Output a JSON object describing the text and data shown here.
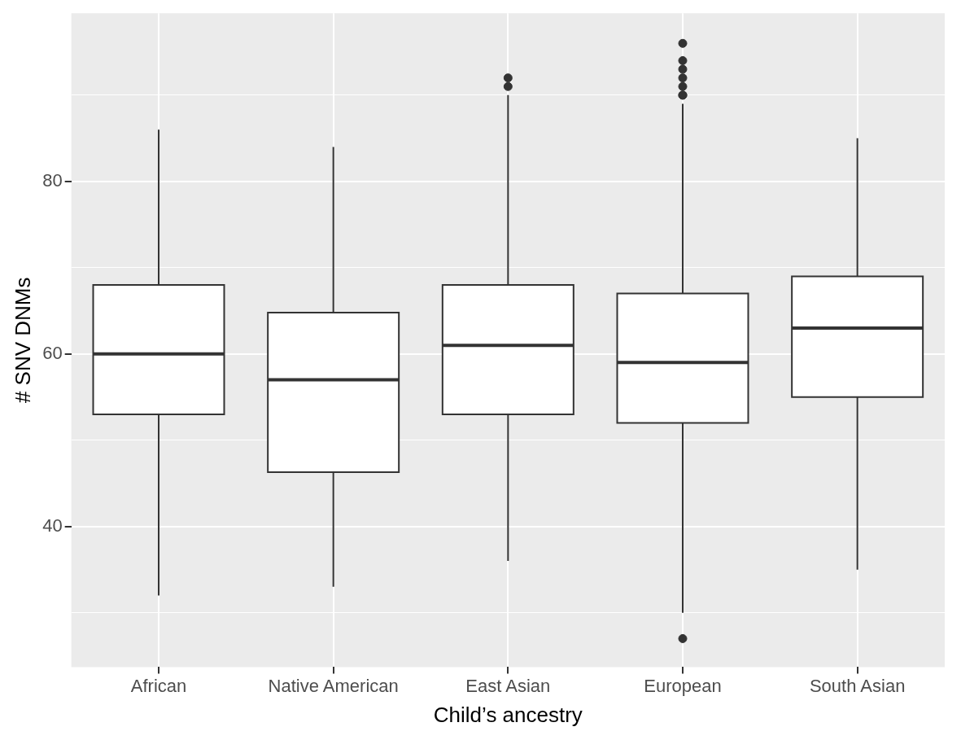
{
  "chart_data": {
    "type": "box",
    "xlabel": "Child’s ancestry",
    "ylabel": "# SNV DNMs",
    "categories": [
      "African",
      "Native American",
      "East Asian",
      "European",
      "South Asian"
    ],
    "boxes": [
      {
        "low": 32,
        "q1": 53,
        "median": 60,
        "q3": 68,
        "high": 86
      },
      {
        "low": 33,
        "q1": 46.3,
        "median": 57,
        "q3": 64.8,
        "high": 84
      },
      {
        "low": 36,
        "q1": 53,
        "median": 61,
        "q3": 68,
        "high": 90,
        "outliers": [
          91,
          92
        ]
      },
      {
        "low": 30,
        "q1": 52,
        "median": 59,
        "q3": 67,
        "high": 89,
        "outliers": [
          27,
          90,
          90,
          91,
          92,
          93,
          94,
          96
        ]
      },
      {
        "low": 35,
        "q1": 55,
        "median": 63,
        "q3": 69,
        "high": 85
      }
    ],
    "color": "#ffffff",
    "ylim": [
      23.7,
      99.5
    ],
    "yticks": [
      {
        "value": 30,
        "label": null
      },
      40,
      {
        "value": 50,
        "label": null
      },
      60,
      {
        "value": 70,
        "label": null
      },
      80,
      {
        "value": 90,
        "label": null
      }
    ],
    "grid": true
  }
}
